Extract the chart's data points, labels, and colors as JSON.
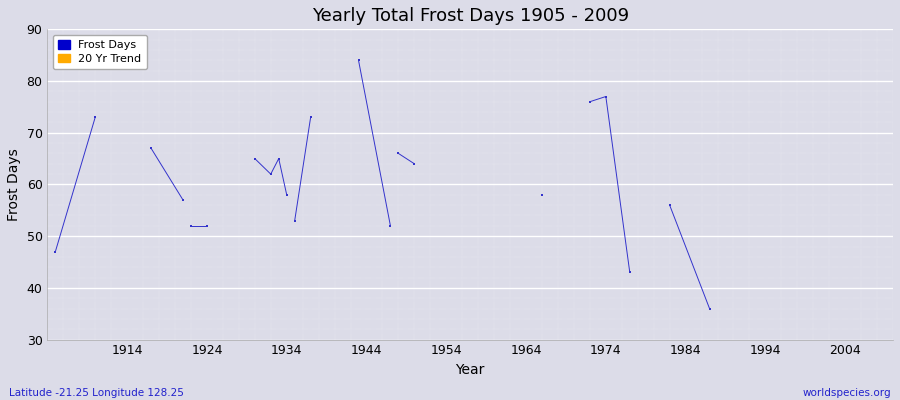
{
  "title": "Yearly Total Frost Days 1905 - 2009",
  "xlabel": "Year",
  "ylabel": "Frost Days",
  "ylim": [
    30,
    90
  ],
  "xlim": [
    1904,
    2010
  ],
  "xticks": [
    1914,
    1924,
    1934,
    1944,
    1954,
    1964,
    1974,
    1984,
    1994,
    2004
  ],
  "yticks": [
    30,
    40,
    50,
    60,
    70,
    80,
    90
  ],
  "bg_color": "#dcdce8",
  "plot_color": "#3333cc",
  "legend_labels": [
    "Frost Days",
    "20 Yr Trend"
  ],
  "legend_colors": [
    "#0000cc",
    "#ffaa00"
  ],
  "subtitle_left": "Latitude -21.25 Longitude 128.25",
  "subtitle_right": "worldspecies.org",
  "title_fontsize": 13,
  "groups": [
    {
      "years": [
        1905,
        1910
      ],
      "values": [
        47,
        73
      ]
    },
    {
      "years": [
        1917,
        1921
      ],
      "values": [
        67,
        57
      ]
    },
    {
      "years": [
        1922,
        1924
      ],
      "values": [
        52,
        52
      ]
    },
    {
      "years": [
        1930,
        1932,
        1933,
        1934
      ],
      "values": [
        65,
        62,
        65,
        58
      ]
    },
    {
      "years": [
        1935,
        1937
      ],
      "values": [
        53,
        73
      ]
    },
    {
      "years": [
        1943,
        1947
      ],
      "values": [
        84,
        52
      ]
    },
    {
      "years": [
        1948,
        1950
      ],
      "values": [
        66,
        64
      ]
    },
    {
      "years": [
        1966
      ],
      "values": [
        58
      ]
    },
    {
      "years": [
        1972,
        1974,
        1977
      ],
      "values": [
        76,
        77,
        43
      ]
    },
    {
      "years": [
        1982,
        1987
      ],
      "values": [
        56,
        36
      ]
    }
  ]
}
